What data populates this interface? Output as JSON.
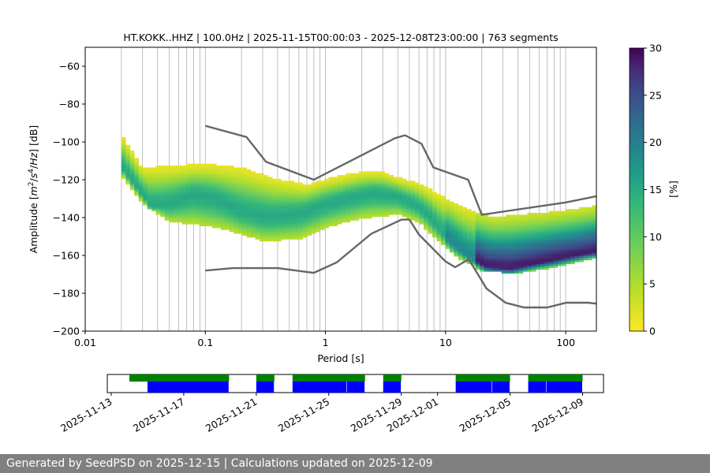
{
  "chart_data": {
    "type": "heatmap",
    "title": "HT.KOKK..HHZ | 100.0Hz | 2025-11-15T00:00:03 - 2025-12-08T23:00:00 | 763 segments",
    "xlabel": "Period [s]",
    "ylabel": "Amplitude [$m^2/s^4/Hz$] [dB]",
    "x_scale": "log",
    "xlim": [
      0.01,
      180
    ],
    "ylim": [
      -200,
      -50
    ],
    "xticks": [
      0.01,
      0.1,
      1,
      10,
      100
    ],
    "xtick_labels": [
      "0.01",
      "0.1",
      "1",
      "10",
      "100"
    ],
    "yticks": [
      -200,
      -180,
      -160,
      -140,
      -120,
      -100,
      -80,
      -60
    ],
    "ytick_labels": [
      "−200",
      "−180",
      "−160",
      "−140",
      "−120",
      "−100",
      "−80",
      "−60"
    ],
    "grid": "x-major-and-minor",
    "colorbar": {
      "label": "[%]",
      "range": [
        0,
        30
      ],
      "ticks": [
        0,
        5,
        10,
        15,
        20,
        25,
        30
      ],
      "tick_labels": [
        "0",
        "5",
        "10",
        "15",
        "20",
        "25",
        "30"
      ],
      "colormap": "viridis_r"
    },
    "density_mode": [
      [
        0.02,
        -113
      ],
      [
        0.025,
        -121
      ],
      [
        0.03,
        -128
      ],
      [
        0.035,
        -134
      ],
      [
        0.05,
        -133
      ],
      [
        0.08,
        -128
      ],
      [
        0.12,
        -130
      ],
      [
        0.2,
        -137
      ],
      [
        0.35,
        -140
      ],
      [
        0.6,
        -138
      ],
      [
        1,
        -133
      ],
      [
        1.5,
        -130
      ],
      [
        2.5,
        -127
      ],
      [
        4,
        -129
      ],
      [
        5.5,
        -133
      ],
      [
        7,
        -138
      ],
      [
        10,
        -150
      ],
      [
        15,
        -160
      ],
      [
        22,
        -166
      ],
      [
        35,
        -167
      ],
      [
        60,
        -164
      ],
      [
        100,
        -161
      ],
      [
        180,
        -158
      ]
    ],
    "density_lower": [
      [
        0.02,
        -117
      ],
      [
        0.03,
        -132
      ],
      [
        0.05,
        -142
      ],
      [
        0.08,
        -143
      ],
      [
        0.15,
        -146
      ],
      [
        0.3,
        -152
      ],
      [
        0.6,
        -151
      ],
      [
        1,
        -145
      ],
      [
        2,
        -140
      ],
      [
        4,
        -138
      ],
      [
        6,
        -142
      ],
      [
        8,
        -150
      ],
      [
        12,
        -160
      ],
      [
        20,
        -168
      ],
      [
        40,
        -169
      ],
      [
        80,
        -166
      ],
      [
        180,
        -161
      ]
    ],
    "density_upper": [
      [
        0.02,
        -96
      ],
      [
        0.03,
        -114
      ],
      [
        0.05,
        -113
      ],
      [
        0.1,
        -112
      ],
      [
        0.2,
        -114
      ],
      [
        0.4,
        -120
      ],
      [
        0.7,
        -123
      ],
      [
        1,
        -120
      ],
      [
        2,
        -116
      ],
      [
        3,
        -116
      ],
      [
        4,
        -119
      ],
      [
        6,
        -122
      ],
      [
        10,
        -130
      ],
      [
        15,
        -136
      ],
      [
        25,
        -140
      ],
      [
        60,
        -138
      ],
      [
        120,
        -136
      ],
      [
        180,
        -134
      ]
    ],
    "noise_model_high": {
      "x": [
        0.1,
        0.22,
        0.32,
        0.8,
        3.8,
        4.6,
        6.3,
        7.9,
        15.4,
        20,
        100,
        180
      ],
      "y": [
        -91.5,
        -97.4,
        -110.5,
        -120,
        -98,
        -96.5,
        -101,
        -113.5,
        -120,
        -138.5,
        -132,
        -128.7
      ]
    },
    "noise_model_low": {
      "x": [
        0.1,
        0.17,
        0.4,
        0.8,
        1.24,
        2.4,
        4.3,
        5,
        6,
        10,
        12,
        15.6,
        21.9,
        31.6,
        45,
        70,
        101,
        154,
        180
      ],
      "y": [
        -168,
        -166.7,
        -166.7,
        -169.2,
        -163.7,
        -148.6,
        -141.1,
        -141.1,
        -149,
        -163.2,
        -166.2,
        -162.1,
        -177.5,
        -185,
        -187.5,
        -187.5,
        -185,
        -185,
        -185.5
      ]
    },
    "availability": {
      "date_ticks": [
        "2025-11-13",
        "2025-11-17",
        "2025-11-21",
        "2025-11-25",
        "2025-11-29",
        "2025-12-01",
        "2025-12-05",
        "2025-12-09"
      ],
      "x_range": [
        "2025-11-13",
        "2025-12-10"
      ],
      "data_spans": [
        [
          "2025-11-14",
          "2025-11-19.5"
        ],
        [
          "2025-11-21",
          "2025-11-22"
        ],
        [
          "2025-11-23",
          "2025-11-27"
        ],
        [
          "2025-11-28",
          "2025-11-29"
        ],
        [
          "2025-12-02",
          "2025-12-05"
        ],
        [
          "2025-12-06",
          "2025-12-09"
        ]
      ],
      "psd_spans": [
        [
          "2025-11-15",
          "2025-11-19.5"
        ],
        [
          "2025-11-21",
          "2025-11-22"
        ],
        [
          "2025-11-23",
          "2025-11-26"
        ],
        [
          "2025-11-26",
          "2025-11-27"
        ],
        [
          "2025-11-28",
          "2025-11-29"
        ],
        [
          "2025-12-02",
          "2025-12-04"
        ],
        [
          "2025-12-04",
          "2025-12-05"
        ],
        [
          "2025-12-06",
          "2025-12-07"
        ],
        [
          "2025-12-07",
          "2025-12-09"
        ]
      ],
      "colors": {
        "data": "#008000",
        "psd": "#0000ff"
      }
    }
  },
  "footer": {
    "text": "Generated by SeedPSD on 2025-12-15 | Calculations updated on 2025-12-09"
  },
  "colors": {
    "noise_model": "#666666",
    "grid": "#b0b0b0",
    "footer_bg": "#808080"
  }
}
